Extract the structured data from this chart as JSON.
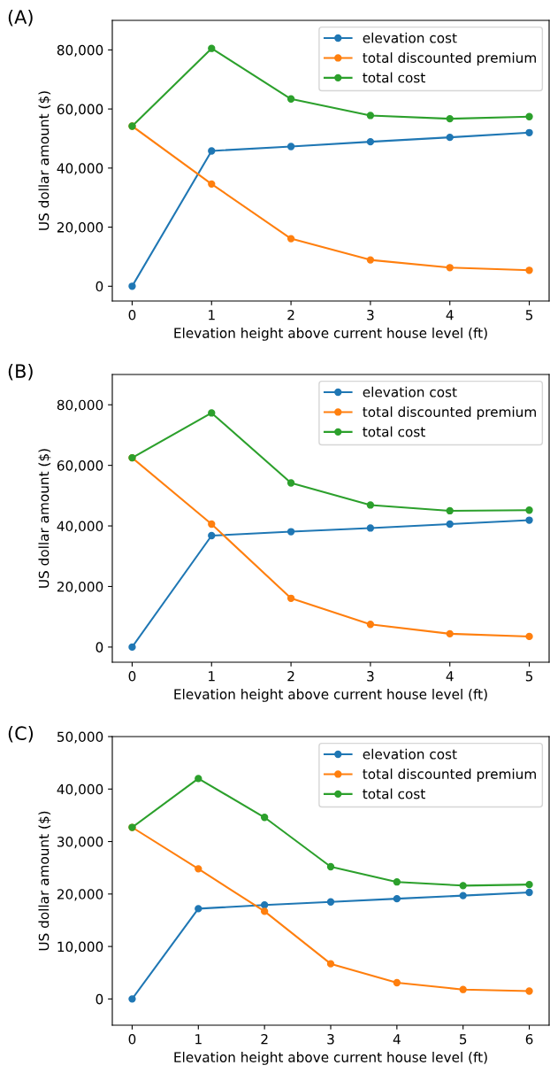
{
  "chart_data": [
    {
      "type": "line",
      "title": "(A)",
      "xlabel": "Elevation height above current house level (ft)",
      "ylabel": "US dollar amount ($)",
      "x": [
        0,
        1,
        2,
        3,
        4,
        5
      ],
      "xlim": [
        -0.25,
        5.25
      ],
      "xticks": [
        0,
        1,
        2,
        3,
        4,
        5
      ],
      "ylim": [
        -5000,
        90000
      ],
      "yticks": [
        0,
        {
          "value": 20000,
          "label": "20,000"
        },
        {
          "value": 40000,
          "label": "40,000"
        },
        {
          "value": 60000,
          "label": "60,000"
        },
        {
          "value": 80000,
          "label": "80,000"
        }
      ],
      "marker": "circle",
      "legend": "top right",
      "grid": false,
      "series": [
        {
          "name": "elevation cost",
          "color": "#1f77b4",
          "values": [
            0,
            45800,
            47300,
            48900,
            50400,
            52000
          ]
        },
        {
          "name": "total discounted premium",
          "color": "#ff7f0e",
          "values": [
            54200,
            34600,
            16100,
            8900,
            6300,
            5400
          ]
        },
        {
          "name": "total cost",
          "color": "#2ca02c",
          "values": [
            54200,
            80500,
            63400,
            57800,
            56700,
            57400
          ]
        }
      ]
    },
    {
      "type": "line",
      "title": "(B)",
      "xlabel": "Elevation height above current house level (ft)",
      "ylabel": "US dollar amount ($)",
      "x": [
        0,
        1,
        2,
        3,
        4,
        5
      ],
      "xlim": [
        -0.25,
        5.25
      ],
      "xticks": [
        0,
        1,
        2,
        3,
        4,
        5
      ],
      "ylim": [
        -5000,
        90000
      ],
      "yticks": [
        0,
        {
          "value": 20000,
          "label": "20,000"
        },
        {
          "value": 40000,
          "label": "40,000"
        },
        {
          "value": 60000,
          "label": "60,000"
        },
        {
          "value": 80000,
          "label": "80,000"
        }
      ],
      "marker": "circle",
      "legend": "top right",
      "grid": false,
      "series": [
        {
          "name": "elevation cost",
          "color": "#1f77b4",
          "values": [
            0,
            36800,
            38100,
            39300,
            40600,
            41900
          ]
        },
        {
          "name": "total discounted premium",
          "color": "#ff7f0e",
          "values": [
            62500,
            40600,
            16100,
            7500,
            4400,
            3500
          ]
        },
        {
          "name": "total cost",
          "color": "#2ca02c",
          "values": [
            62500,
            77300,
            54200,
            46900,
            45000,
            45200
          ]
        }
      ]
    },
    {
      "type": "line",
      "title": "(C)",
      "xlabel": "Elevation height above current house level (ft)",
      "ylabel": "US dollar amount ($)",
      "x": [
        0,
        1,
        2,
        3,
        4,
        5,
        6
      ],
      "xlim": [
        -0.3,
        6.3
      ],
      "xticks": [
        0,
        1,
        2,
        3,
        4,
        5,
        6
      ],
      "ylim": [
        -5000,
        50000
      ],
      "yticks": [
        0,
        {
          "value": 10000,
          "label": "10,000"
        },
        {
          "value": 20000,
          "label": "20,000"
        },
        {
          "value": 30000,
          "label": "30,000"
        },
        {
          "value": 40000,
          "label": "40,000"
        },
        {
          "value": 50000,
          "label": "50,000"
        }
      ],
      "marker": "circle",
      "legend": "top right",
      "grid": false,
      "series": [
        {
          "name": "elevation cost",
          "color": "#1f77b4",
          "values": [
            0,
            17200,
            17900,
            18500,
            19100,
            19700,
            20300
          ]
        },
        {
          "name": "total discounted premium",
          "color": "#ff7f0e",
          "values": [
            32700,
            24800,
            16700,
            6700,
            3100,
            1800,
            1500
          ]
        },
        {
          "name": "total cost",
          "color": "#2ca02c",
          "values": [
            32700,
            42000,
            34600,
            25200,
            22300,
            21600,
            21800
          ]
        }
      ]
    }
  ]
}
